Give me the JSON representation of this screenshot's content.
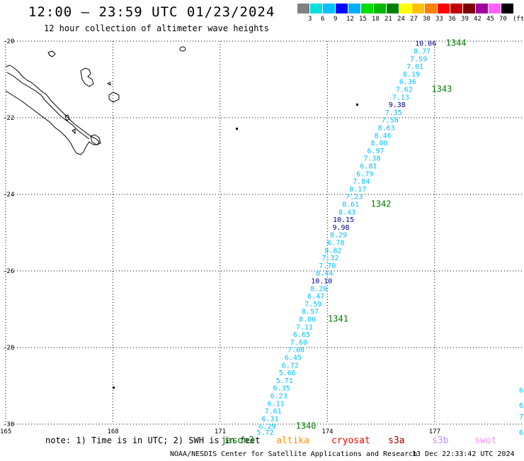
{
  "header": {
    "title": "12:00 – 23:59 UTC 01/23/2024",
    "subtitle": "12 hour collection of altimeter wave heights"
  },
  "color_scale": {
    "unit": "(ft)",
    "bins": [
      {
        "label": "",
        "color": "#808080"
      },
      {
        "label": "3",
        "color": "#00e0e0"
      },
      {
        "label": "6",
        "color": "#00c0ff"
      },
      {
        "label": "9",
        "color": "#0000ff"
      },
      {
        "label": "12",
        "color": "#00b0ff"
      },
      {
        "label": "15",
        "color": "#00e000"
      },
      {
        "label": "18",
        "color": "#00b800"
      },
      {
        "label": "21",
        "color": "#008000"
      },
      {
        "label": "24",
        "color": "#ffff00"
      },
      {
        "label": "27",
        "color": "#ffc000"
      },
      {
        "label": "30",
        "color": "#ff8000"
      },
      {
        "label": "33",
        "color": "#ff0000"
      },
      {
        "label": "36",
        "color": "#c00000"
      },
      {
        "label": "39",
        "color": "#800000"
      },
      {
        "label": "42",
        "color": "#a000a0"
      },
      {
        "label": "45",
        "color": "#ff60ff"
      },
      {
        "label": "70",
        "color": "#000000"
      }
    ]
  },
  "map": {
    "lon_range": [
      165,
      179.5
    ],
    "lat_range": [
      -30,
      -20
    ],
    "lat_labels": [
      "-20",
      "-22",
      "-24",
      "-26",
      "-28",
      "-30"
    ],
    "lon_labels": [
      "165",
      "168",
      "171",
      "174",
      "177"
    ],
    "track_color_default": "#00bfff",
    "track_color_high": "#000090",
    "pass_label_color": "#007800",
    "track": [
      {
        "v": "10.06",
        "lat": -20.05,
        "lon": 176.75
      },
      {
        "v": "8.77",
        "lat": -20.25,
        "lon": 176.65
      },
      {
        "v": "7.59",
        "lat": -20.45,
        "lon": 176.55
      },
      {
        "v": "7.01",
        "lat": -20.65,
        "lon": 176.45
      },
      {
        "v": "8.19",
        "lat": -20.85,
        "lon": 176.35
      },
      {
        "v": "6.36",
        "lat": -21.05,
        "lon": 176.25
      },
      {
        "v": "7.62",
        "lat": -21.25,
        "lon": 176.15
      },
      {
        "v": "7.13",
        "lat": -21.45,
        "lon": 176.05
      },
      {
        "v": "9.38",
        "lat": -21.65,
        "lon": 175.95
      },
      {
        "v": "7.35",
        "lat": -21.85,
        "lon": 175.85
      },
      {
        "v": "7.58",
        "lat": -22.05,
        "lon": 175.75
      },
      {
        "v": "8.63",
        "lat": -22.25,
        "lon": 175.65
      },
      {
        "v": "8.46",
        "lat": -22.45,
        "lon": 175.55
      },
      {
        "v": "8.00",
        "lat": -22.65,
        "lon": 175.45
      },
      {
        "v": "6.97",
        "lat": -22.85,
        "lon": 175.35
      },
      {
        "v": "7.38",
        "lat": -23.05,
        "lon": 175.25
      },
      {
        "v": "6.81",
        "lat": -23.25,
        "lon": 175.15
      },
      {
        "v": "6.79",
        "lat": -23.45,
        "lon": 175.05
      },
      {
        "v": "7.84",
        "lat": -23.65,
        "lon": 174.95
      },
      {
        "v": "8.17",
        "lat": -23.85,
        "lon": 174.85
      },
      {
        "v": "7.23",
        "lat": -24.05,
        "lon": 174.75
      },
      {
        "v": "8.61",
        "lat": -24.25,
        "lon": 174.65
      },
      {
        "v": "8.43",
        "lat": -24.45,
        "lon": 174.55
      },
      {
        "v": "10.15",
        "lat": -24.65,
        "lon": 174.45
      },
      {
        "v": "9.98",
        "lat": -24.85,
        "lon": 174.38
      },
      {
        "v": "8.29",
        "lat": -25.05,
        "lon": 174.31
      },
      {
        "v": "6.78",
        "lat": -25.25,
        "lon": 174.24
      },
      {
        "v": "8.82",
        "lat": -25.45,
        "lon": 174.16
      },
      {
        "v": "7.32",
        "lat": -25.65,
        "lon": 174.08
      },
      {
        "v": "7.70",
        "lat": -25.85,
        "lon": 174.0
      },
      {
        "v": "8.44",
        "lat": -26.05,
        "lon": 173.92
      },
      {
        "v": "10.10",
        "lat": -26.25,
        "lon": 173.84
      },
      {
        "v": "8.28",
        "lat": -26.45,
        "lon": 173.76
      },
      {
        "v": "6.47",
        "lat": -26.65,
        "lon": 173.68
      },
      {
        "v": "7.59",
        "lat": -26.85,
        "lon": 173.6
      },
      {
        "v": "8.57",
        "lat": -27.05,
        "lon": 173.52
      },
      {
        "v": "8.06",
        "lat": -27.25,
        "lon": 173.44
      },
      {
        "v": "7.11",
        "lat": -27.45,
        "lon": 173.36
      },
      {
        "v": "6.65",
        "lat": -27.65,
        "lon": 173.28
      },
      {
        "v": "7.60",
        "lat": -27.85,
        "lon": 173.2
      },
      {
        "v": "7.08",
        "lat": -28.05,
        "lon": 173.12
      },
      {
        "v": "6.45",
        "lat": -28.25,
        "lon": 173.04
      },
      {
        "v": "6.72",
        "lat": -28.45,
        "lon": 172.96
      },
      {
        "v": "5.66",
        "lat": -28.65,
        "lon": 172.88
      },
      {
        "v": "5.71",
        "lat": -28.85,
        "lon": 172.8
      },
      {
        "v": "6.35",
        "lat": -29.05,
        "lon": 172.72
      },
      {
        "v": "6.23",
        "lat": -29.25,
        "lon": 172.64
      },
      {
        "v": "6.11",
        "lat": -29.45,
        "lon": 172.56
      },
      {
        "v": "7.61",
        "lat": -29.65,
        "lon": 172.48
      },
      {
        "v": "6.31",
        "lat": -29.85,
        "lon": 172.4
      },
      {
        "v": "6.29",
        "lat": -30.05,
        "lon": 172.32
      },
      {
        "v": "5.72",
        "lat": -30.2,
        "lon": 172.26
      }
    ],
    "pass_labels": [
      {
        "text": "1344",
        "lat": -20.05,
        "lon": 177.6
      },
      {
        "text": "1343",
        "lat": -21.25,
        "lon": 177.2
      },
      {
        "text": "1342",
        "lat": -24.25,
        "lon": 175.5
      },
      {
        "text": "1341",
        "lat": -27.25,
        "lon": 174.3
      },
      {
        "text": "1340",
        "lat": -30.05,
        "lon": 173.4
      }
    ],
    "edge_values": [
      {
        "v": "6",
        "lat": -29.1
      },
      {
        "v": "6",
        "lat": -29.5
      },
      {
        "v": "7",
        "lat": -29.8
      },
      {
        "v": "6.",
        "lat": -30.2
      }
    ]
  },
  "footer": {
    "note": "note: 1) Time is in UTC; 2) SWH is in feet",
    "satellites": [
      {
        "name": "jason3",
        "color": "#008000"
      },
      {
        "name": "altika",
        "color": "#ff9000"
      },
      {
        "name": "cryosat",
        "color": "#ff0000"
      },
      {
        "name": "s3a",
        "color": "#a00000"
      },
      {
        "name": "s3b",
        "color": "#c090ff"
      },
      {
        "name": "swot",
        "color": "#ff90ff"
      }
    ],
    "credit": "NOAA/NESDIS Center for Satellite Applications and Research",
    "timestamp": "13 Dec 22:33:42 UTC 2024"
  }
}
